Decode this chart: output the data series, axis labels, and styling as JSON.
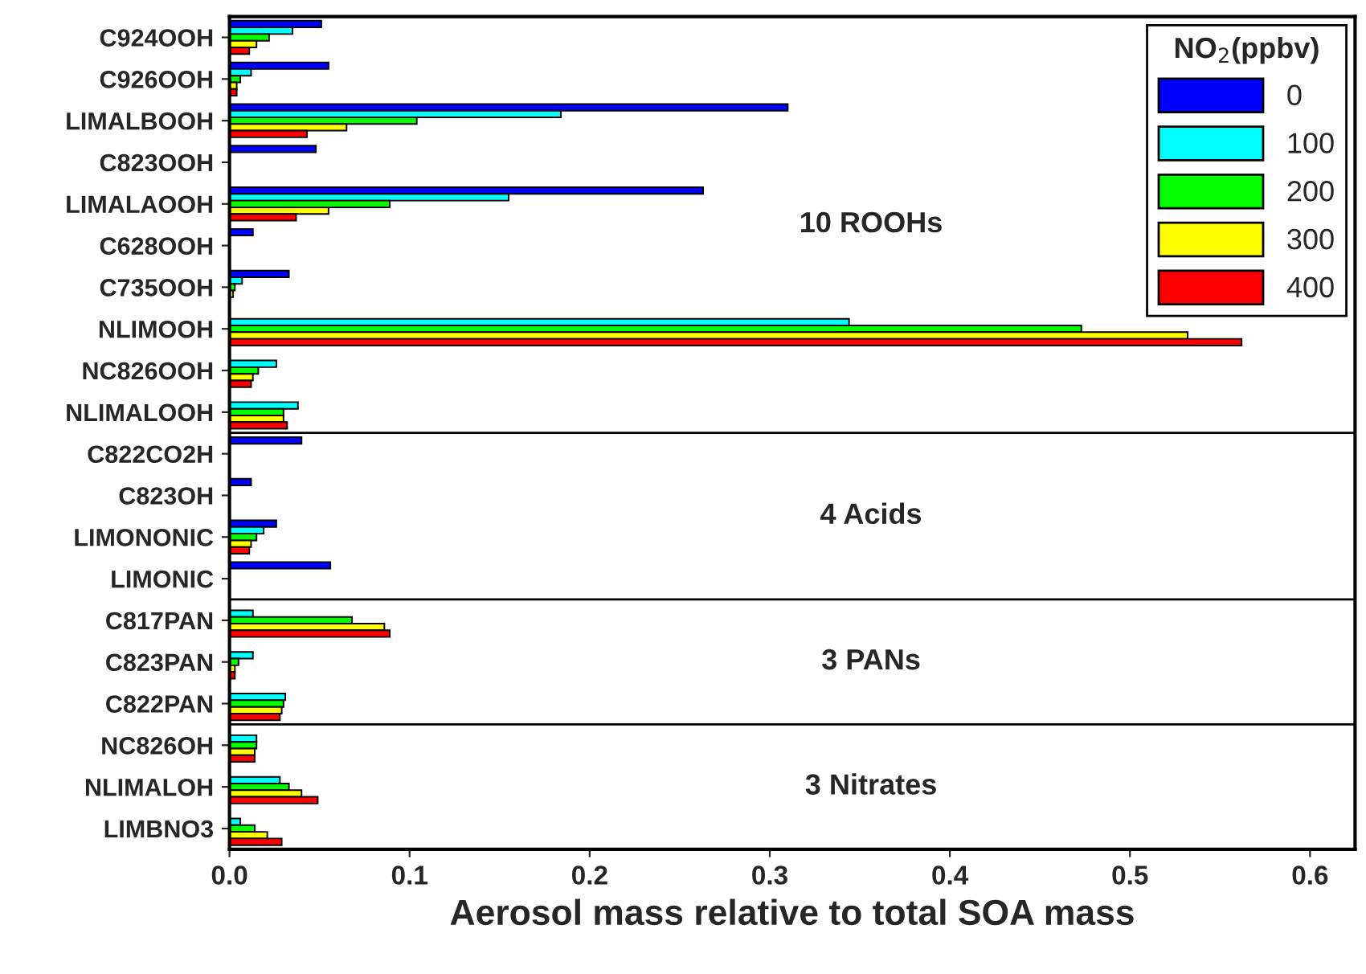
{
  "chart_data": {
    "type": "bar",
    "orientation": "horizontal",
    "xlabel": "Aerosol mass relative to total SOA mass",
    "legend_title": "NO$_{2}$(ppbv)",
    "categories": [
      "C924OOH",
      "C926OOH",
      "LIMALBOOH",
      "C823OOH",
      "LIMALAOOH",
      "C628OOH",
      "C735OOH",
      "NLIMOOH",
      "NC826OOH",
      "NLIMALOOH",
      "C822CO2H",
      "C823OH",
      "LIMONONIC",
      "LIMONIC",
      "C817PAN",
      "C823PAN",
      "C822PAN",
      "NC826OH",
      "NLIMALOH",
      "LIMBNO3"
    ],
    "series": [
      {
        "name": "0",
        "color": "#0000ff",
        "values": [
          0.051,
          0.055,
          0.31,
          0.048,
          0.263,
          0.013,
          0.033,
          null,
          null,
          null,
          0.04,
          0.012,
          0.026,
          0.056,
          null,
          null,
          null,
          null,
          null,
          null
        ]
      },
      {
        "name": "100",
        "color": "#00ffff",
        "values": [
          0.035,
          0.012,
          0.184,
          null,
          0.155,
          null,
          0.007,
          0.344,
          0.026,
          0.038,
          null,
          null,
          0.019,
          null,
          0.013,
          0.013,
          0.031,
          0.015,
          0.028,
          0.006
        ]
      },
      {
        "name": "200",
        "color": "#00ff00",
        "values": [
          0.022,
          0.006,
          0.104,
          null,
          0.089,
          null,
          0.003,
          0.473,
          0.016,
          0.03,
          null,
          null,
          0.015,
          null,
          0.068,
          0.005,
          0.03,
          0.015,
          0.033,
          0.014
        ]
      },
      {
        "name": "300",
        "color": "#ffff00",
        "values": [
          0.015,
          0.004,
          0.065,
          null,
          0.055,
          null,
          0.002,
          0.532,
          0.013,
          0.03,
          null,
          null,
          0.012,
          null,
          0.086,
          0.003,
          0.029,
          0.014,
          0.04,
          0.021
        ]
      },
      {
        "name": "400",
        "color": "#ff0000",
        "values": [
          0.011,
          0.004,
          0.043,
          null,
          0.037,
          null,
          null,
          0.562,
          0.012,
          0.032,
          null,
          null,
          0.011,
          null,
          0.089,
          0.003,
          0.028,
          0.014,
          0.049,
          0.029
        ]
      }
    ],
    "xlim": [
      0,
      0.625
    ],
    "xticks": [
      {
        "value": 0,
        "label": "0.0"
      },
      0.1,
      0.2,
      0.3,
      0.4,
      0.5,
      0.6
    ],
    "annotations": [
      "10 ROOHs",
      "4 Acids",
      "3 PANs",
      "3 Nitrates"
    ],
    "legend": "top right",
    "grid": false
  }
}
